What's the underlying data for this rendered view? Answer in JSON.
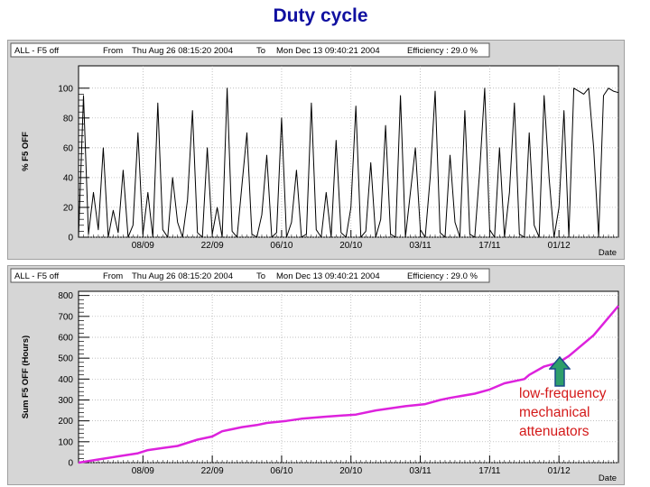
{
  "page_title": "Duty cycle",
  "colors": {
    "title": "#1010a0",
    "line2": "#dd22dd",
    "annotation": "#d41a1a",
    "arrow_fill": "#2e9e6a",
    "arrow_stroke": "#1a4a8a"
  },
  "annotation": {
    "lines": [
      "low-frequency",
      "mechanical",
      "attenuators"
    ],
    "icon": "up-arrow-icon"
  },
  "chart_data": [
    {
      "type": "line",
      "header": {
        "left": "ALL  -  F5 off",
        "from_label": "From",
        "from_value": "Thu Aug 26 08:15:20 2004",
        "to_label": "To",
        "to_value": "Mon Dec 13 09:40:21 2004",
        "efficiency": "Efficiency : 29.0 %"
      },
      "ylabel": "% F5 OFF",
      "xlabel": "Date",
      "xlim": [
        "2004-08-26",
        "2004-12-13"
      ],
      "ylim": [
        0,
        115
      ],
      "yticks": [
        0,
        20,
        40,
        60,
        80,
        100
      ],
      "xtick_labels": [
        "08/09",
        "22/09",
        "06/10",
        "20/10",
        "03/11",
        "17/11",
        "01/12"
      ],
      "xtick_dates": [
        "2004-09-08",
        "2004-09-22",
        "2004-10-06",
        "2004-10-20",
        "2004-11-03",
        "2004-11-17",
        "2004-12-01"
      ],
      "grid": true,
      "note": "noisy hourly signal; values approximated",
      "series": [
        {
          "x_days_from_start": [
            0,
            1,
            2,
            3,
            4,
            5,
            6,
            7,
            8,
            9,
            10,
            11,
            12,
            13,
            14,
            15,
            16,
            17,
            18,
            19,
            20,
            21,
            22,
            23,
            24,
            25,
            26,
            27,
            28,
            29,
            30,
            31,
            32,
            33,
            34,
            35,
            36,
            37,
            38,
            39,
            40,
            41,
            42,
            43,
            44,
            45,
            46,
            47,
            48,
            49,
            50,
            51,
            52,
            53,
            54,
            55,
            56,
            57,
            58,
            59,
            60,
            61,
            62,
            63,
            64,
            65,
            66,
            67,
            68,
            69,
            70,
            71,
            72,
            73,
            74,
            75,
            76,
            77,
            78,
            79,
            80,
            81,
            82,
            83,
            84,
            85,
            86,
            87,
            88,
            89,
            90,
            91,
            92,
            93,
            94,
            95,
            96,
            97,
            98,
            99,
            100,
            101,
            102,
            103,
            104,
            105,
            106,
            107,
            108,
            109
          ],
          "y": [
            0,
            95,
            2,
            30,
            5,
            60,
            0,
            18,
            3,
            45,
            0,
            8,
            70,
            2,
            30,
            0,
            90,
            5,
            0,
            40,
            10,
            0,
            25,
            85,
            3,
            0,
            60,
            2,
            20,
            0,
            100,
            4,
            0,
            35,
            70,
            2,
            0,
            15,
            55,
            0,
            3,
            80,
            0,
            10,
            45,
            0,
            2,
            90,
            5,
            0,
            30,
            0,
            65,
            3,
            0,
            20,
            88,
            0,
            4,
            50,
            0,
            12,
            75,
            2,
            0,
            95,
            0,
            30,
            60,
            5,
            0,
            40,
            98,
            3,
            0,
            55,
            10,
            0,
            85,
            2,
            0,
            45,
            100,
            5,
            0,
            60,
            0,
            30,
            90,
            2,
            0,
            70,
            8,
            0,
            95,
            40,
            0,
            20,
            85,
            0,
            100,
            98,
            96,
            100,
            60,
            0,
            95,
            100,
            98,
            97
          ]
        }
      ]
    },
    {
      "type": "line",
      "header": {
        "left": "ALL  -  F5 off",
        "from_label": "From",
        "from_value": "Thu Aug 26 08:15:20 2004",
        "to_label": "To",
        "to_value": "Mon Dec 13 09:40:21 2004",
        "efficiency": "Efficiency : 29.0 %"
      },
      "ylabel": "Sum F5 OFF (Hours)",
      "xlabel": "Date",
      "xlim": [
        "2004-08-26",
        "2004-12-13"
      ],
      "ylim": [
        0,
        820
      ],
      "yticks": [
        0,
        100,
        200,
        300,
        400,
        500,
        600,
        700,
        800
      ],
      "xtick_labels": [
        "08/09",
        "22/09",
        "06/10",
        "20/10",
        "03/11",
        "17/11",
        "01/12"
      ],
      "xtick_dates": [
        "2004-09-08",
        "2004-09-22",
        "2004-10-06",
        "2004-10-20",
        "2004-11-03",
        "2004-11-17",
        "2004-12-01"
      ],
      "grid": true,
      "series": [
        {
          "x_days_from_start": [
            0,
            4,
            8,
            12,
            14,
            17,
            20,
            24,
            27,
            29,
            33,
            36,
            38,
            42,
            45,
            50,
            56,
            60,
            63,
            66,
            70,
            73,
            75,
            80,
            83,
            86,
            90,
            91,
            94,
            97,
            99,
            101,
            104,
            109
          ],
          "y": [
            0,
            15,
            30,
            45,
            60,
            70,
            80,
            110,
            125,
            150,
            170,
            180,
            190,
            200,
            210,
            220,
            230,
            250,
            260,
            270,
            280,
            300,
            310,
            330,
            350,
            380,
            400,
            420,
            460,
            480,
            510,
            550,
            610,
            750
          ]
        }
      ]
    }
  ]
}
